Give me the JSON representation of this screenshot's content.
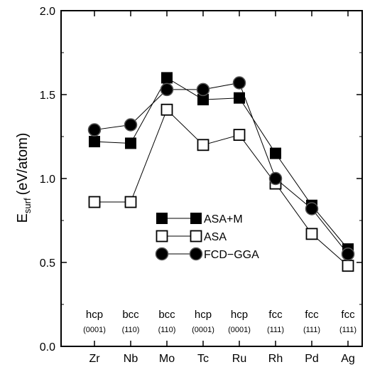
{
  "chart_data": {
    "type": "line",
    "categories": [
      "Zr",
      "Nb",
      "Mo",
      "Tc",
      "Ru",
      "Rh",
      "Pd",
      "Ag"
    ],
    "structures": [
      "hcp",
      "bcc",
      "bcc",
      "hcp",
      "hcp",
      "fcc",
      "fcc",
      "fcc"
    ],
    "faces": [
      "(0001)",
      "(110)",
      "(110)",
      "(0001)",
      "(0001)",
      "(111)",
      "(111)",
      "(111)"
    ],
    "ylabel_main": "E",
    "ylabel_sub": "surf",
    "ylabel_unit": "(eV/atom)",
    "ylim": [
      0.0,
      2.0
    ],
    "yticks": [
      "0.0",
      "0.5",
      "1.0",
      "1.5",
      "2.0"
    ],
    "series": [
      {
        "name": "ASA+M",
        "marker": "filled-square",
        "values": [
          1.22,
          1.21,
          1.6,
          1.47,
          1.48,
          1.15,
          0.84,
          0.58
        ]
      },
      {
        "name": "ASA",
        "marker": "open-square",
        "values": [
          0.86,
          0.86,
          1.41,
          1.2,
          1.26,
          0.97,
          0.67,
          0.48
        ]
      },
      {
        "name": "FCD−GGA",
        "marker": "filled-circle",
        "values": [
          1.29,
          1.32,
          1.53,
          1.53,
          1.57,
          1.0,
          0.82,
          0.55
        ]
      }
    ],
    "legend_position": "center",
    "grid": false,
    "colors": {
      "line": "#000000",
      "fill": "#000000",
      "open_fill": "#ffffff"
    }
  }
}
